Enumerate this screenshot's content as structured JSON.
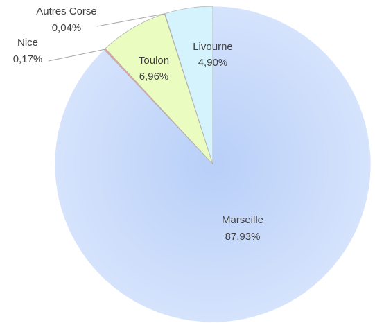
{
  "chart_data": {
    "type": "pie",
    "categories": [
      "Marseille",
      "Nice",
      "Toulon",
      "Autres Corse",
      "Livourne"
    ],
    "values": [
      87.93,
      0.17,
      6.96,
      0.04,
      4.9
    ],
    "value_labels": [
      "87,93%",
      "0,17%",
      "6,96%",
      "0,04%",
      "4,90%"
    ],
    "colors": [
      "#c9dbfb",
      "#f0a0a0",
      "#eafcc0",
      "#f4e0b0",
      "#d4f3fd"
    ]
  }
}
